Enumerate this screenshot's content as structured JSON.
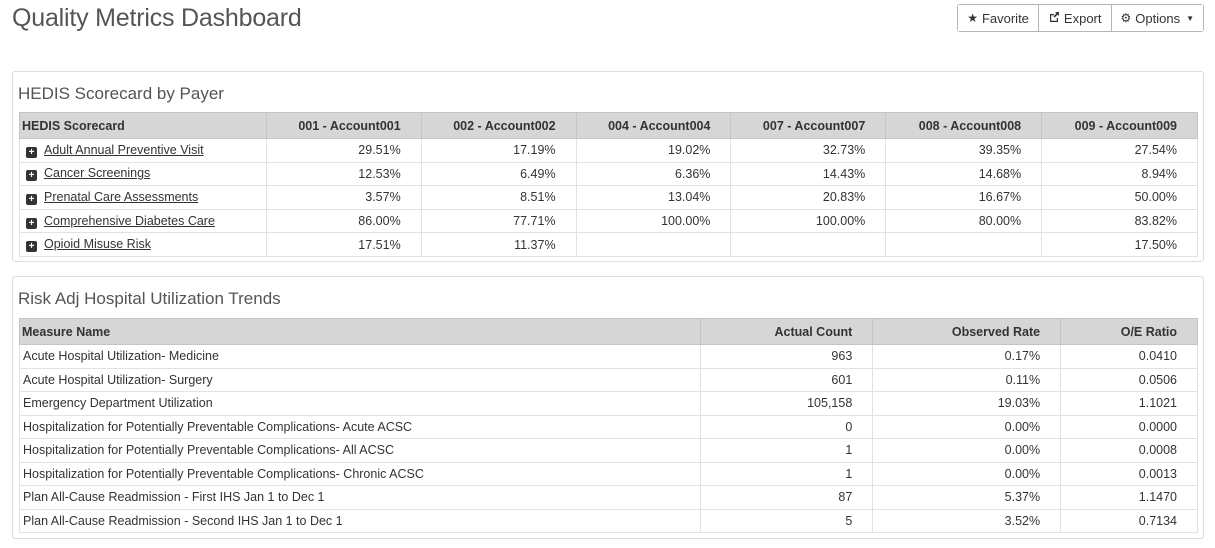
{
  "page": {
    "title": "Quality Metrics Dashboard"
  },
  "toolbar": {
    "favorite_label": "Favorite",
    "export_label": "Export",
    "options_label": "Options",
    "favorite_icon": "star-icon",
    "export_icon": "external-export-icon",
    "options_icon": "gear-icon"
  },
  "hedis": {
    "title": "HEDIS Scorecard by Payer",
    "columns": [
      "HEDIS Scorecard",
      "001 - Account001",
      "002 - Account002",
      "004 - Account004",
      "007 - Account007",
      "008 - Account008",
      "009 - Account009"
    ],
    "rows": [
      {
        "measure": "Adult Annual Preventive Visit",
        "values": [
          "29.51%",
          "17.19%",
          "19.02%",
          "32.73%",
          "39.35%",
          "27.54%"
        ]
      },
      {
        "measure": "Cancer Screenings",
        "values": [
          "12.53%",
          "6.49%",
          "6.36%",
          "14.43%",
          "14.68%",
          "8.94%"
        ]
      },
      {
        "measure": "Prenatal Care Assessments",
        "values": [
          "3.57%",
          "8.51%",
          "13.04%",
          "20.83%",
          "16.67%",
          "50.00%"
        ]
      },
      {
        "measure": "Comprehensive Diabetes Care",
        "values": [
          "86.00%",
          "77.71%",
          "100.00%",
          "100.00%",
          "80.00%",
          "83.82%"
        ]
      },
      {
        "measure": "Opioid Misuse Risk",
        "values": [
          "17.51%",
          "11.37%",
          "",
          "",
          "",
          "17.50%"
        ]
      }
    ]
  },
  "utilization": {
    "title": "Risk Adj Hospital Utilization Trends",
    "columns": [
      "Measure Name",
      "Actual Count",
      "Observed Rate",
      "O/E Ratio"
    ],
    "rows": [
      {
        "name": "Acute Hospital Utilization- Medicine",
        "actual_count": "963",
        "observed_rate": "0.17%",
        "oe_ratio": "0.0410"
      },
      {
        "name": "Acute Hospital Utilization- Surgery",
        "actual_count": "601",
        "observed_rate": "0.11%",
        "oe_ratio": "0.0506"
      },
      {
        "name": "Emergency Department Utilization",
        "actual_count": "105,158",
        "observed_rate": "19.03%",
        "oe_ratio": "1.1021"
      },
      {
        "name": "Hospitalization for Potentially Preventable Complications- Acute ACSC",
        "actual_count": "0",
        "observed_rate": "0.00%",
        "oe_ratio": "0.0000"
      },
      {
        "name": "Hospitalization for Potentially Preventable Complications- All ACSC",
        "actual_count": "1",
        "observed_rate": "0.00%",
        "oe_ratio": "0.0008"
      },
      {
        "name": "Hospitalization for Potentially Preventable Complications- Chronic ACSC",
        "actual_count": "1",
        "observed_rate": "0.00%",
        "oe_ratio": "0.0013"
      },
      {
        "name": "Plan All-Cause Readmission - First IHS Jan 1 to Dec 1",
        "actual_count": "87",
        "observed_rate": "5.37%",
        "oe_ratio": "1.1470"
      },
      {
        "name": "Plan All-Cause Readmission - Second IHS Jan 1 to Dec 1",
        "actual_count": "5",
        "observed_rate": "3.52%",
        "oe_ratio": "0.7134"
      }
    ]
  }
}
